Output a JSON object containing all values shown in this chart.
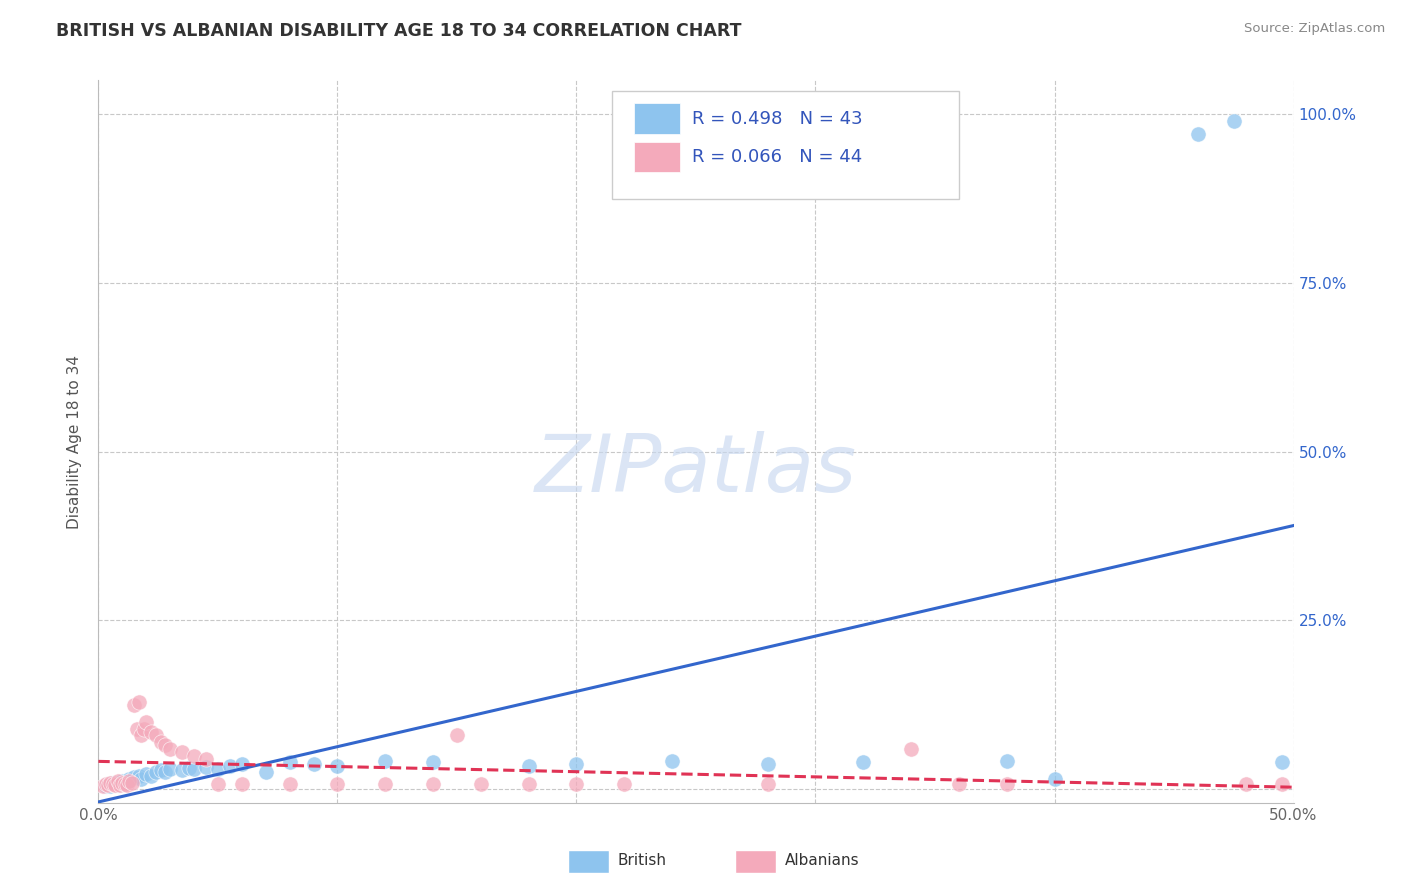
{
  "title": "BRITISH VS ALBANIAN DISABILITY AGE 18 TO 34 CORRELATION CHART",
  "source": "Source: ZipAtlas.com",
  "ylabel": "Disability Age 18 to 34",
  "watermark": "ZIPatlas",
  "xlim": [
    0.0,
    0.5
  ],
  "ylim": [
    -0.02,
    1.05
  ],
  "xticks": [
    0.0,
    0.1,
    0.2,
    0.3,
    0.4,
    0.5
  ],
  "xticklabels": [
    "0.0%",
    "",
    "",
    "",
    "",
    "50.0%"
  ],
  "yticks": [
    0.0,
    0.25,
    0.5,
    0.75,
    1.0
  ],
  "right_yticklabels": [
    "",
    "25.0%",
    "50.0%",
    "75.0%",
    "100.0%"
  ],
  "british_R": 0.498,
  "british_N": 43,
  "albanian_R": 0.066,
  "albanian_N": 44,
  "british_color": "#8EC4EE",
  "albanian_color": "#F4AABB",
  "british_line_color": "#3366CC",
  "albanian_line_color": "#E03355",
  "grid_color": "#C8C8C8",
  "british_scatter": [
    [
      0.003,
      0.005
    ],
    [
      0.004,
      0.008
    ],
    [
      0.005,
      0.005
    ],
    [
      0.006,
      0.01
    ],
    [
      0.007,
      0.007
    ],
    [
      0.008,
      0.006
    ],
    [
      0.009,
      0.009
    ],
    [
      0.01,
      0.012
    ],
    [
      0.011,
      0.008
    ],
    [
      0.012,
      0.01
    ],
    [
      0.013,
      0.015
    ],
    [
      0.015,
      0.018
    ],
    [
      0.017,
      0.02
    ],
    [
      0.018,
      0.015
    ],
    [
      0.02,
      0.022
    ],
    [
      0.022,
      0.02
    ],
    [
      0.024,
      0.025
    ],
    [
      0.026,
      0.028
    ],
    [
      0.028,
      0.025
    ],
    [
      0.03,
      0.03
    ],
    [
      0.035,
      0.028
    ],
    [
      0.038,
      0.032
    ],
    [
      0.04,
      0.03
    ],
    [
      0.045,
      0.033
    ],
    [
      0.05,
      0.03
    ],
    [
      0.055,
      0.035
    ],
    [
      0.06,
      0.038
    ],
    [
      0.07,
      0.025
    ],
    [
      0.08,
      0.04
    ],
    [
      0.09,
      0.038
    ],
    [
      0.1,
      0.035
    ],
    [
      0.12,
      0.042
    ],
    [
      0.14,
      0.04
    ],
    [
      0.18,
      0.035
    ],
    [
      0.2,
      0.038
    ],
    [
      0.24,
      0.042
    ],
    [
      0.28,
      0.038
    ],
    [
      0.32,
      0.04
    ],
    [
      0.38,
      0.042
    ],
    [
      0.4,
      0.015
    ],
    [
      0.46,
      0.97
    ],
    [
      0.475,
      0.99
    ],
    [
      0.495,
      0.04
    ]
  ],
  "albanian_scatter": [
    [
      0.002,
      0.005
    ],
    [
      0.003,
      0.008
    ],
    [
      0.004,
      0.006
    ],
    [
      0.005,
      0.01
    ],
    [
      0.006,
      0.008
    ],
    [
      0.007,
      0.007
    ],
    [
      0.008,
      0.012
    ],
    [
      0.009,
      0.006
    ],
    [
      0.01,
      0.01
    ],
    [
      0.011,
      0.008
    ],
    [
      0.012,
      0.007
    ],
    [
      0.013,
      0.012
    ],
    [
      0.014,
      0.01
    ],
    [
      0.015,
      0.125
    ],
    [
      0.016,
      0.09
    ],
    [
      0.017,
      0.13
    ],
    [
      0.018,
      0.08
    ],
    [
      0.019,
      0.09
    ],
    [
      0.02,
      0.1
    ],
    [
      0.022,
      0.085
    ],
    [
      0.024,
      0.08
    ],
    [
      0.026,
      0.07
    ],
    [
      0.028,
      0.065
    ],
    [
      0.03,
      0.06
    ],
    [
      0.035,
      0.055
    ],
    [
      0.04,
      0.05
    ],
    [
      0.045,
      0.045
    ],
    [
      0.05,
      0.008
    ],
    [
      0.06,
      0.008
    ],
    [
      0.08,
      0.008
    ],
    [
      0.1,
      0.008
    ],
    [
      0.12,
      0.008
    ],
    [
      0.14,
      0.008
    ],
    [
      0.15,
      0.08
    ],
    [
      0.16,
      0.008
    ],
    [
      0.18,
      0.008
    ],
    [
      0.2,
      0.008
    ],
    [
      0.22,
      0.008
    ],
    [
      0.28,
      0.008
    ],
    [
      0.34,
      0.06
    ],
    [
      0.36,
      0.008
    ],
    [
      0.38,
      0.008
    ],
    [
      0.48,
      0.008
    ],
    [
      0.495,
      0.008
    ]
  ]
}
